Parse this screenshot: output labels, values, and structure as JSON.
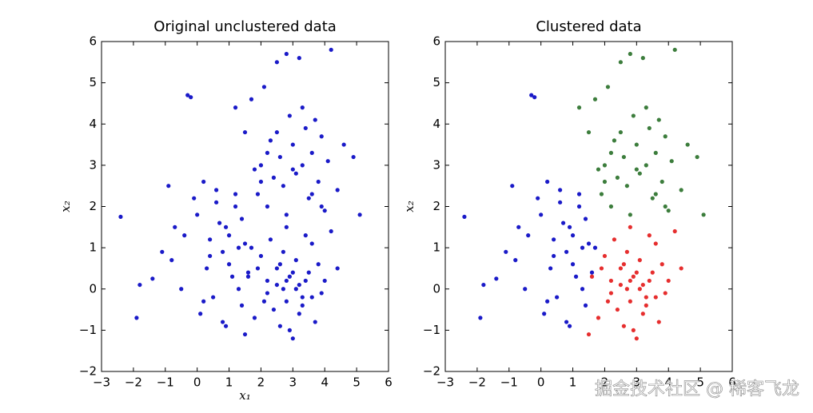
{
  "chart_data": [
    {
      "type": "scatter",
      "title": "Original unclustered data",
      "xlabel": "x₁",
      "ylabel": "x₂",
      "xlim": [
        -3,
        6
      ],
      "ylim": [
        -2,
        6
      ],
      "xticks": [
        {
          "value": -3,
          "label": "−3"
        },
        {
          "value": -2,
          "label": "−2"
        },
        {
          "value": -1,
          "label": "−1"
        },
        0,
        1,
        2,
        3,
        4,
        5,
        6
      ],
      "yticks": [
        {
          "value": -2,
          "label": "−2"
        },
        {
          "value": -1,
          "label": "−1"
        },
        0,
        1,
        2,
        3,
        4,
        5,
        6
      ],
      "series": [
        {
          "color": "#1a1ac8",
          "x": [
            -2.4,
            -1.9,
            -1.8,
            -1.4,
            -1.1,
            -0.9,
            -0.8,
            -0.7,
            -0.5,
            -0.3,
            -0.2,
            -0.1,
            0.0,
            0.1,
            0.2,
            0.3,
            0.4,
            0.5,
            0.6,
            0.7,
            0.8,
            0.9,
            1.0,
            1.1,
            1.2,
            1.3,
            1.4,
            1.5,
            0.2,
            0.6,
            1.0,
            1.4,
            0.8,
            1.2,
            -0.4,
            0.4,
            1.6,
            1.7,
            0.9,
            1.3
          ],
          "y": [
            1.75,
            -0.7,
            0.1,
            0.25,
            0.9,
            2.5,
            0.7,
            1.5,
            0.0,
            4.7,
            4.65,
            2.2,
            1.8,
            -0.6,
            2.6,
            0.5,
            1.2,
            -0.2,
            2.1,
            1.6,
            0.9,
            -0.9,
            1.3,
            0.3,
            2.0,
            1.0,
            -0.4,
            1.1,
            -0.3,
            2.4,
            0.6,
            1.7,
            -0.8,
            2.3,
            1.3,
            0.8,
            0.4,
            1.0,
            1.5,
            0.0
          ]
        },
        {
          "color": "#1a1ac8",
          "x": [
            1.2,
            1.5,
            1.7,
            1.9,
            2.0,
            2.1,
            2.2,
            2.3,
            2.4,
            2.5,
            2.6,
            2.7,
            2.8,
            2.9,
            3.0,
            3.1,
            3.2,
            3.3,
            3.4,
            3.5,
            3.6,
            3.7,
            3.8,
            3.9,
            4.0,
            4.1,
            4.2,
            4.4,
            4.6,
            4.9,
            5.1,
            2.5,
            3.0,
            3.3,
            2.0,
            2.8,
            3.6,
            2.2,
            1.8,
            3.9
          ],
          "y": [
            4.4,
            3.8,
            4.6,
            2.3,
            3.0,
            4.9,
            2.0,
            3.6,
            2.7,
            5.5,
            3.2,
            2.5,
            5.7,
            4.2,
            3.5,
            2.8,
            5.6,
            3.0,
            3.9,
            2.2,
            3.3,
            4.1,
            2.6,
            3.7,
            1.9,
            3.1,
            5.8,
            2.4,
            3.5,
            3.2,
            1.8,
            3.8,
            2.9,
            4.4,
            2.6,
            1.8,
            2.3,
            3.3,
            2.9,
            2.0
          ]
        },
        {
          "color": "#1a1ac8",
          "x": [
            1.5,
            1.6,
            1.8,
            2.0,
            2.1,
            2.2,
            2.3,
            2.4,
            2.5,
            2.6,
            2.7,
            2.8,
            2.9,
            3.0,
            3.1,
            3.2,
            3.3,
            3.4,
            3.5,
            3.6,
            3.7,
            3.8,
            3.9,
            4.0,
            4.2,
            2.5,
            2.8,
            3.0,
            3.2,
            2.7,
            3.1,
            2.9,
            2.6,
            3.4,
            2.2,
            1.9,
            3.6,
            2.8,
            3.3,
            4.4
          ],
          "y": [
            -1.1,
            0.3,
            -0.7,
            0.8,
            -0.3,
            0.2,
            1.2,
            -0.5,
            0.5,
            -0.9,
            0.0,
            1.5,
            0.3,
            -1.2,
            0.7,
            0.1,
            -0.4,
            1.3,
            0.4,
            -0.2,
            -0.8,
            0.6,
            -0.1,
            0.2,
            1.4,
            0.1,
            -0.3,
            0.4,
            -0.6,
            0.9,
            0.0,
            -1.0,
            0.6,
            0.2,
            -0.1,
            0.5,
            1.1,
            0.2,
            -0.2,
            0.5
          ]
        }
      ]
    },
    {
      "type": "scatter",
      "title": "Clustered data",
      "ylabel": "x₂",
      "xlim": [
        -3,
        6
      ],
      "ylim": [
        -2,
        6
      ],
      "xticks": [
        {
          "value": -3,
          "label": "−3"
        },
        {
          "value": -2,
          "label": "−2"
        },
        {
          "value": -1,
          "label": "−1"
        },
        0,
        1,
        2,
        3,
        4,
        5,
        6
      ],
      "yticks": [
        {
          "value": -2,
          "label": "−2"
        },
        {
          "value": -1,
          "label": "−1"
        },
        0,
        1,
        2,
        3,
        4,
        5,
        6
      ],
      "series": [
        {
          "color": "#1a1ac8",
          "x": [
            -2.4,
            -1.9,
            -1.8,
            -1.4,
            -1.1,
            -0.9,
            -0.8,
            -0.7,
            -0.5,
            -0.3,
            -0.2,
            -0.1,
            0.0,
            0.1,
            0.2,
            0.3,
            0.4,
            0.5,
            0.6,
            0.7,
            0.8,
            0.9,
            1.0,
            1.1,
            1.2,
            1.3,
            1.4,
            1.5,
            0.2,
            0.6,
            1.0,
            1.4,
            0.8,
            1.2,
            -0.4,
            0.4,
            1.6,
            1.7,
            0.9,
            1.3
          ],
          "y": [
            1.75,
            -0.7,
            0.1,
            0.25,
            0.9,
            2.5,
            0.7,
            1.5,
            0.0,
            4.7,
            4.65,
            2.2,
            1.8,
            -0.6,
            2.6,
            0.5,
            1.2,
            -0.2,
            2.1,
            1.6,
            0.9,
            -0.9,
            1.3,
            0.3,
            2.0,
            1.0,
            -0.4,
            1.1,
            -0.3,
            2.4,
            0.6,
            1.7,
            -0.8,
            2.3,
            1.3,
            0.8,
            0.4,
            1.0,
            1.5,
            0.0
          ]
        },
        {
          "color": "#3c7d3c",
          "x": [
            1.2,
            1.5,
            1.7,
            1.9,
            2.0,
            2.1,
            2.2,
            2.3,
            2.4,
            2.5,
            2.6,
            2.7,
            2.8,
            2.9,
            3.0,
            3.1,
            3.2,
            3.3,
            3.4,
            3.5,
            3.6,
            3.7,
            3.8,
            3.9,
            4.0,
            4.1,
            4.2,
            4.4,
            4.6,
            4.9,
            5.1,
            2.5,
            3.0,
            3.3,
            2.0,
            2.8,
            3.6,
            2.2,
            1.8,
            3.9
          ],
          "y": [
            4.4,
            3.8,
            4.6,
            2.3,
            3.0,
            4.9,
            2.0,
            3.6,
            2.7,
            5.5,
            3.2,
            2.5,
            5.7,
            4.2,
            3.5,
            2.8,
            5.6,
            3.0,
            3.9,
            2.2,
            3.3,
            4.1,
            2.6,
            3.7,
            1.9,
            3.1,
            5.8,
            2.4,
            3.5,
            3.2,
            1.8,
            3.8,
            2.9,
            4.4,
            2.6,
            1.8,
            2.3,
            3.3,
            2.9,
            2.0
          ]
        },
        {
          "color": "#e62e2e",
          "x": [
            1.5,
            1.6,
            1.8,
            2.0,
            2.1,
            2.2,
            2.3,
            2.4,
            2.5,
            2.6,
            2.7,
            2.8,
            2.9,
            3.0,
            3.1,
            3.2,
            3.3,
            3.4,
            3.5,
            3.6,
            3.7,
            3.8,
            3.9,
            4.0,
            4.2,
            2.5,
            2.8,
            3.0,
            3.2,
            2.7,
            3.1,
            2.9,
            2.6,
            3.4,
            2.2,
            1.9,
            3.6,
            2.8,
            3.3,
            4.4
          ],
          "y": [
            -1.1,
            0.3,
            -0.7,
            0.8,
            -0.3,
            0.2,
            1.2,
            -0.5,
            0.5,
            -0.9,
            0.0,
            1.5,
            0.3,
            -1.2,
            0.7,
            0.1,
            -0.4,
            1.3,
            0.4,
            -0.2,
            -0.8,
            0.6,
            -0.1,
            0.2,
            1.4,
            0.1,
            -0.3,
            0.4,
            -0.6,
            0.9,
            0.0,
            -1.0,
            0.6,
            0.2,
            -0.1,
            0.5,
            1.1,
            0.2,
            -0.2,
            0.5
          ]
        }
      ]
    }
  ],
  "watermark": "掘金技术社区 @ 稀客飞龙"
}
